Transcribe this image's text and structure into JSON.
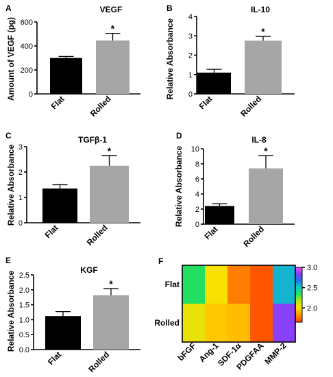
{
  "panels": [
    {
      "letter": "A",
      "title": "VEGF",
      "ylabel": "Amount of VEGF (pg)"
    },
    {
      "letter": "B",
      "title": "IL-10",
      "ylabel": "Relative Absorbance"
    },
    {
      "letter": "C",
      "title": "TGFβ-1",
      "ylabel": "Relative Absorbance"
    },
    {
      "letter": "D",
      "title": "IL-8",
      "ylabel": "Relative Absorbance"
    },
    {
      "letter": "E",
      "title": "KGF",
      "ylabel": "Relative Absorbance"
    },
    {
      "letter": "F"
    }
  ],
  "colors": {
    "flat": "#000000",
    "rolled": "#a6a6a6"
  },
  "chart_data": [
    {
      "type": "bar",
      "title": "VEGF",
      "xlabel": "",
      "ylabel": "Amount of VEGF (pg)",
      "categories": [
        "Flat",
        "Rolled"
      ],
      "values": [
        300,
        445
      ],
      "errors": [
        12,
        60
      ],
      "ylim": [
        0,
        600
      ],
      "yticks": [
        "0",
        "200",
        "400",
        "600"
      ],
      "significant": [
        "",
        "*"
      ]
    },
    {
      "type": "bar",
      "title": "IL-10",
      "xlabel": "",
      "ylabel": "Relative Absorbance",
      "categories": [
        "Flat",
        "Rolled"
      ],
      "values": [
        1.1,
        2.75
      ],
      "errors": [
        0.17,
        0.22
      ],
      "ylim": [
        0,
        4
      ],
      "yticks": [
        "0",
        "1",
        "2",
        "3",
        "4"
      ],
      "significant": [
        "",
        "*"
      ]
    },
    {
      "type": "bar",
      "title": "TGFβ-1",
      "xlabel": "",
      "ylabel": "Relative Absorbance",
      "categories": [
        "Flat",
        "Rolled"
      ],
      "values": [
        1.35,
        2.25
      ],
      "errors": [
        0.15,
        0.4
      ],
      "ylim": [
        0,
        3
      ],
      "yticks": [
        "0",
        "1",
        "2",
        "3"
      ],
      "significant": [
        "",
        "*"
      ]
    },
    {
      "type": "bar",
      "title": "IL-8",
      "xlabel": "",
      "ylabel": "Relative Absorbance",
      "categories": [
        "Flat",
        "Rolled"
      ],
      "values": [
        2.4,
        7.4
      ],
      "errors": [
        0.3,
        1.7
      ],
      "ylim": [
        0,
        10
      ],
      "yticks": [
        "0",
        "2",
        "4",
        "6",
        "8",
        "10"
      ],
      "significant": [
        "",
        "*"
      ]
    },
    {
      "type": "bar",
      "title": "KGF",
      "xlabel": "",
      "ylabel": "Relative Absorbance",
      "categories": [
        "Flat",
        "Rolled"
      ],
      "values": [
        1.12,
        1.82
      ],
      "errors": [
        0.15,
        0.22
      ],
      "ylim": [
        0,
        2.5
      ],
      "yticks": [
        "0.0",
        "0.5",
        "1.0",
        "1.5",
        "2.0",
        "2.5"
      ],
      "significant": [
        "",
        "*"
      ]
    },
    {
      "type": "heatmap",
      "title": "",
      "rows": [
        "Flat",
        "Rolled"
      ],
      "columns": [
        "bFGF",
        "Ang-1",
        "SDF-1α",
        "PDGFAA",
        "MMP-2"
      ],
      "values": [
        [
          2.35,
          2.02,
          1.78,
          1.7,
          2.55
        ],
        [
          2.05,
          1.95,
          1.92,
          1.7,
          2.85
        ]
      ],
      "colorbar": {
        "range": [
          1.65,
          3.0
        ],
        "ticks": [
          "2.0",
          "2.5",
          "3.0"
        ]
      }
    }
  ]
}
